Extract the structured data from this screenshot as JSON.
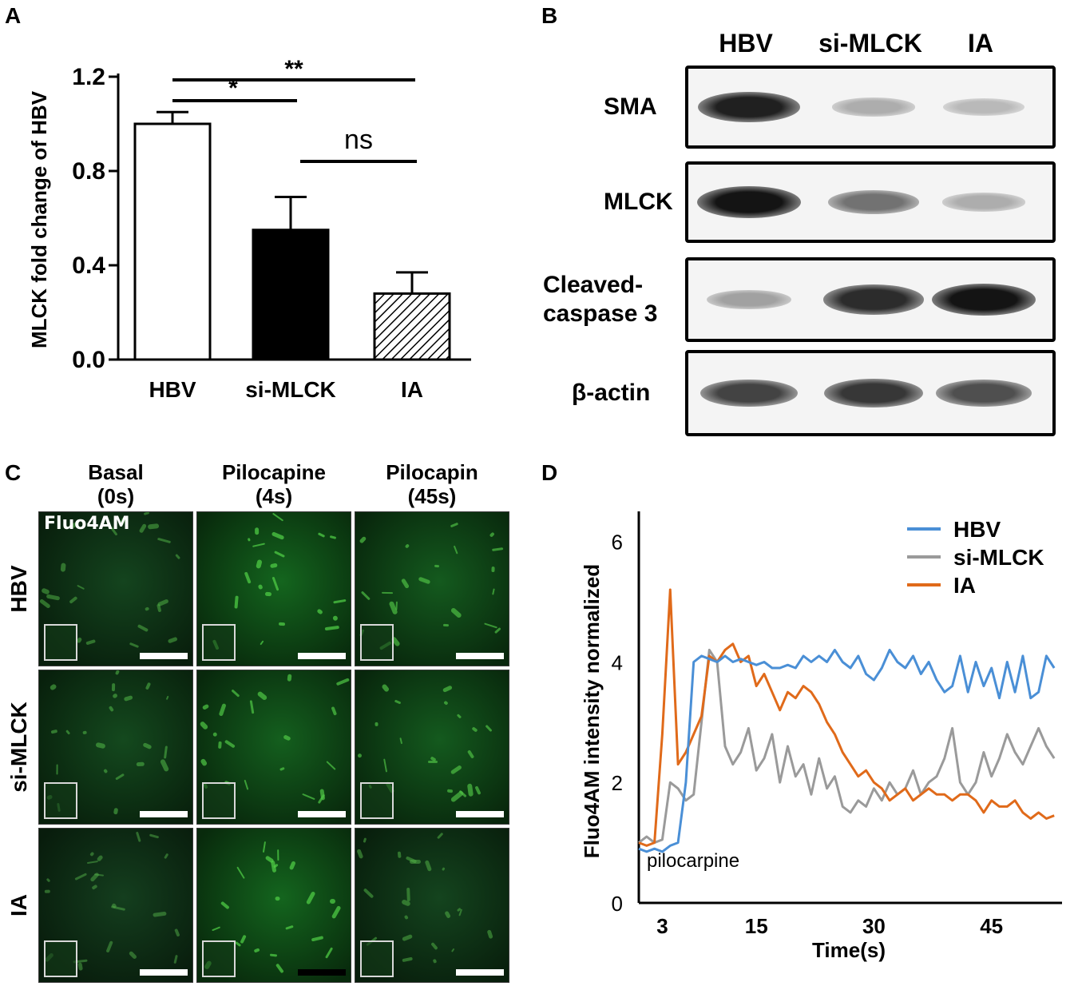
{
  "panels": {
    "A": "A",
    "B": "B",
    "C": "C",
    "D": "D"
  },
  "chart_data": [
    {
      "type": "bar",
      "panel": "A",
      "ylabel": "MLCK fold change of HBV",
      "categories": [
        "HBV",
        "si-MLCK",
        "IA"
      ],
      "values": [
        1.0,
        0.55,
        0.28
      ],
      "errors": [
        0.05,
        0.14,
        0.09
      ],
      "fills": [
        "#ffffff",
        "#000000",
        "hatched"
      ],
      "ylim": [
        0.0,
        1.2
      ],
      "yticks": [
        "0.0",
        "0.4",
        "0.8",
        "1.2"
      ],
      "significance": [
        {
          "from": "HBV",
          "to": "si-MLCK",
          "label": "*"
        },
        {
          "from": "HBV",
          "to": "IA",
          "label": "**"
        },
        {
          "from": "si-MLCK",
          "to": "IA",
          "label": "ns"
        }
      ]
    },
    {
      "type": "line",
      "panel": "D",
      "ylabel": "Fluo4AM intensity normalized",
      "xlabel": "Time(s)",
      "xticks": [
        "3",
        "15",
        "30",
        "45"
      ],
      "yticks": [
        "0",
        "2",
        "4",
        "6"
      ],
      "xlim": [
        0,
        54
      ],
      "ylim": [
        0,
        6.5
      ],
      "annotation": "pilocarpine",
      "legend_position": "top-right",
      "series": [
        {
          "name": "HBV",
          "color": "#4a8fd6",
          "x": [
            0,
            1,
            2,
            3,
            4,
            5,
            6,
            7,
            8,
            9,
            10,
            11,
            12,
            13,
            14,
            15,
            16,
            17,
            18,
            19,
            20,
            21,
            22,
            23,
            24,
            25,
            26,
            27,
            28,
            29,
            30,
            31,
            32,
            33,
            34,
            35,
            36,
            37,
            38,
            39,
            40,
            41,
            42,
            43,
            44,
            45,
            46,
            47,
            48,
            49,
            50,
            51,
            52,
            53
          ],
          "y": [
            0.9,
            0.85,
            0.9,
            0.85,
            0.95,
            1.0,
            2.0,
            4.0,
            4.1,
            4.05,
            4.0,
            4.1,
            4.0,
            4.05,
            4.0,
            3.95,
            4.0,
            3.9,
            3.9,
            3.95,
            3.9,
            4.1,
            4.0,
            4.1,
            4.0,
            4.2,
            4.0,
            3.9,
            4.1,
            3.8,
            3.7,
            3.9,
            4.2,
            4.0,
            3.9,
            4.1,
            3.8,
            4.0,
            3.7,
            3.5,
            3.6,
            4.1,
            3.5,
            4.0,
            3.6,
            3.9,
            3.4,
            4.0,
            3.5,
            4.1,
            3.4,
            3.5,
            4.1,
            3.9
          ]
        },
        {
          "name": "si-MLCK",
          "color": "#9a9a9a",
          "x": [
            0,
            1,
            2,
            3,
            4,
            5,
            6,
            7,
            8,
            9,
            10,
            11,
            12,
            13,
            14,
            15,
            16,
            17,
            18,
            19,
            20,
            21,
            22,
            23,
            24,
            25,
            26,
            27,
            28,
            29,
            30,
            31,
            32,
            33,
            34,
            35,
            36,
            37,
            38,
            39,
            40,
            41,
            42,
            43,
            44,
            45,
            46,
            47,
            48,
            49,
            50,
            51,
            52,
            53
          ],
          "y": [
            1.0,
            1.1,
            1.0,
            1.05,
            2.0,
            1.9,
            1.7,
            1.8,
            3.0,
            4.2,
            4.0,
            2.6,
            2.3,
            2.5,
            2.9,
            2.2,
            2.4,
            2.8,
            2.0,
            2.6,
            2.1,
            2.3,
            1.8,
            2.4,
            1.9,
            2.1,
            1.6,
            1.5,
            1.7,
            1.6,
            1.9,
            1.7,
            2.0,
            1.8,
            1.9,
            2.2,
            1.8,
            2.0,
            2.1,
            2.4,
            2.9,
            2.0,
            1.8,
            2.0,
            2.5,
            2.1,
            2.4,
            2.8,
            2.5,
            2.3,
            2.6,
            2.9,
            2.6,
            2.4
          ]
        },
        {
          "name": "IA",
          "color": "#e06a1a",
          "x": [
            0,
            1,
            2,
            3,
            4,
            5,
            6,
            7,
            8,
            9,
            10,
            11,
            12,
            13,
            14,
            15,
            16,
            17,
            18,
            19,
            20,
            21,
            22,
            23,
            24,
            25,
            26,
            27,
            28,
            29,
            30,
            31,
            32,
            33,
            34,
            35,
            36,
            37,
            38,
            39,
            40,
            41,
            42,
            43,
            44,
            45,
            46,
            47,
            48,
            49,
            50,
            51,
            52,
            53
          ],
          "y": [
            1.0,
            0.95,
            1.0,
            2.8,
            5.2,
            2.3,
            2.5,
            2.8,
            3.1,
            4.1,
            4.0,
            4.2,
            4.3,
            4.0,
            4.1,
            3.6,
            3.8,
            3.5,
            3.2,
            3.5,
            3.4,
            3.6,
            3.5,
            3.3,
            3.0,
            2.8,
            2.5,
            2.3,
            2.1,
            2.2,
            2.0,
            1.9,
            1.7,
            1.8,
            1.9,
            1.7,
            1.8,
            1.9,
            1.8,
            1.8,
            1.7,
            1.8,
            1.8,
            1.7,
            1.5,
            1.7,
            1.6,
            1.6,
            1.7,
            1.5,
            1.4,
            1.5,
            1.4,
            1.45
          ]
        }
      ]
    }
  ],
  "blot": {
    "lanes": [
      "HBV",
      "si-MLCK",
      "IA"
    ],
    "rows": [
      {
        "label": "SMA",
        "intensity": [
          0.95,
          0.35,
          0.3
        ]
      },
      {
        "label": "MLCK",
        "intensity": [
          1.0,
          0.6,
          0.35
        ]
      },
      {
        "label_line1": "Cleaved-",
        "label_line2": "caspase 3",
        "intensity": [
          0.4,
          0.9,
          1.0
        ]
      },
      {
        "label": "β-actin",
        "intensity": [
          0.8,
          0.85,
          0.75
        ]
      }
    ]
  },
  "micro": {
    "columns": [
      {
        "line1": "Basal",
        "line2": "(0s)"
      },
      {
        "line1": "Pilocapine",
        "line2": "(4s)"
      },
      {
        "line1": "Pilocapin",
        "line2": "(45s)"
      }
    ],
    "rows": [
      "HBV",
      "si-MLCK",
      "IA"
    ],
    "stain_label": "Fluo4AM"
  }
}
